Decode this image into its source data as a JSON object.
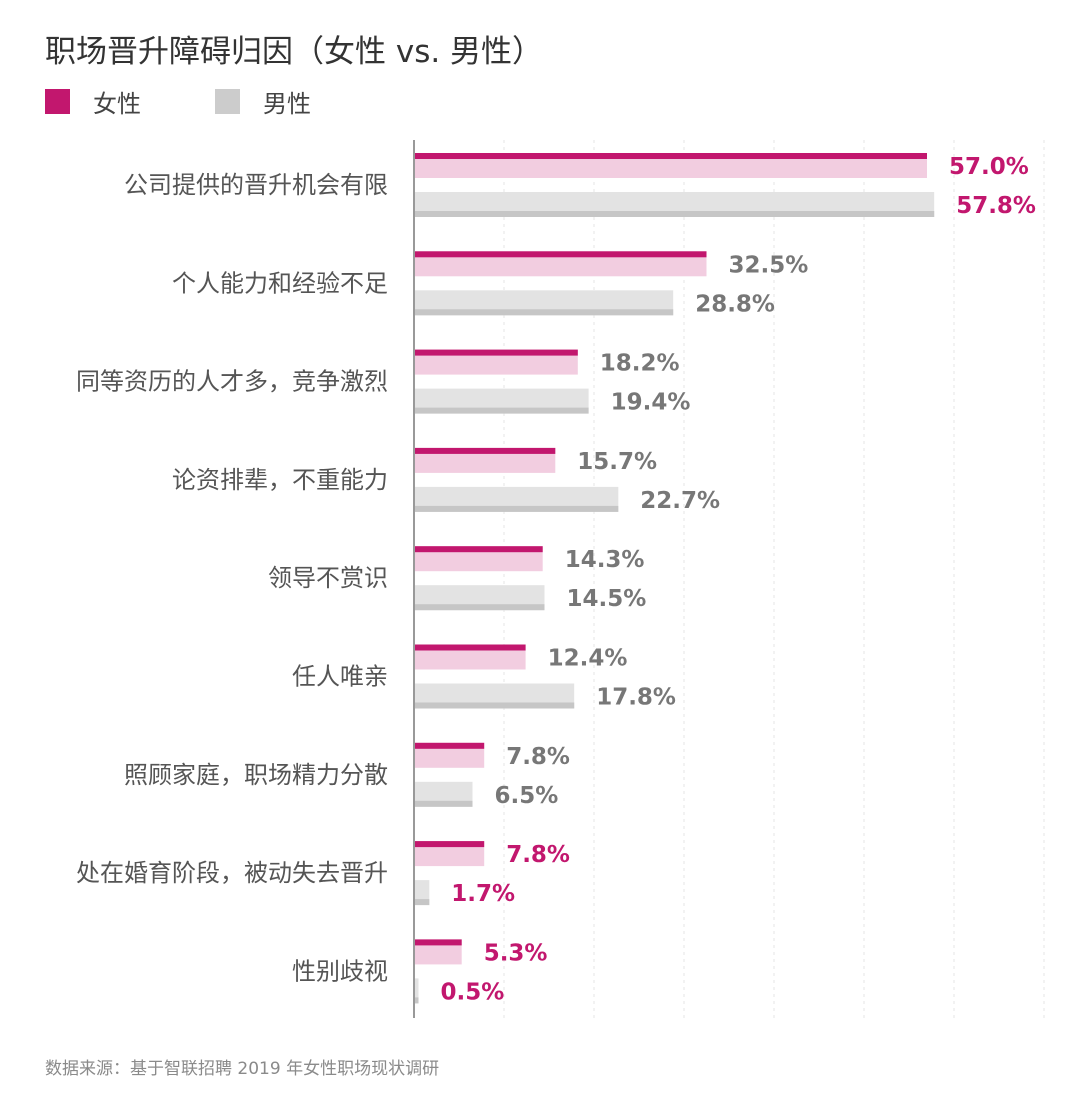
{
  "chart_data": {
    "type": "bar",
    "orientation": "horizontal",
    "title": "职场晋升障碍归因（女性 vs. 男性）",
    "source": "数据来源：基于智联招聘 2019 年女性职场现状调研",
    "categories": [
      "公司提供的晋升机会有限",
      "个人能力和经验不足",
      "同等资历的人才多，竞争激烈",
      "论资排辈，不重能力",
      "领导不赏识",
      "任人唯亲",
      "照顾家庭，职场精力分散",
      "处在婚育阶段，被动失去晋升",
      "性别歧视"
    ],
    "series": [
      {
        "name": "女性",
        "values": [
          57.0,
          32.5,
          18.2,
          15.7,
          14.3,
          12.4,
          7.8,
          7.8,
          5.3
        ],
        "labels": [
          "57.0%",
          "32.5%",
          "18.2%",
          "15.7%",
          "14.3%",
          "12.4%",
          "7.8%",
          "7.8%",
          "5.3%"
        ]
      },
      {
        "name": "男性",
        "values": [
          57.8,
          28.8,
          19.4,
          22.7,
          14.5,
          17.8,
          6.5,
          1.7,
          0.5
        ],
        "labels": [
          "57.8%",
          "28.8%",
          "19.4%",
          "22.7%",
          "14.5%",
          "17.8%",
          "6.5%",
          "1.7%",
          "0.5%"
        ]
      }
    ],
    "highlighted_labels": [
      [
        0,
        0
      ],
      [
        1,
        0
      ],
      [
        0,
        7
      ],
      [
        1,
        7
      ],
      [
        0,
        8
      ],
      [
        1,
        8
      ]
    ],
    "xlim": [
      0,
      70
    ],
    "grid": "vertical dashed",
    "legend_position": "top-left",
    "colors": {
      "female_bar": "#f2cde0",
      "female_accent": "#c2176e",
      "male_bar": "#e3e3e3",
      "male_accent": "#c6c6c6",
      "label_default": "#777777",
      "label_highlight": "#c2176e",
      "axis": "#999999",
      "category_text": "#555555"
    }
  }
}
